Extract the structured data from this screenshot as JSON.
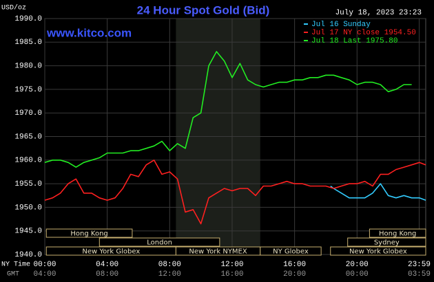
{
  "chart_data": {
    "type": "line",
    "title": "24 Hour Spot Gold (Bid)",
    "site": "www.kitco.com",
    "y_unit": "USD/oz",
    "timestamp": "July 18, 2023 23:23",
    "x_row_label": "NY Time",
    "x2_row_label": "GMT",
    "xlim": [
      0,
      24.4
    ],
    "ylim": [
      1940,
      1990
    ],
    "grid": true,
    "yticks": [
      {
        "value": 1940,
        "label": "1940.0"
      },
      {
        "value": 1945,
        "label": "1945.0"
      },
      {
        "value": 1950,
        "label": "1950.0"
      },
      {
        "value": 1955,
        "label": "1955.0"
      },
      {
        "value": 1960,
        "label": "1960.0"
      },
      {
        "value": 1965,
        "label": "1965.0"
      },
      {
        "value": 1970,
        "label": "1970.0"
      },
      {
        "value": 1975,
        "label": "1975.0"
      },
      {
        "value": 1980,
        "label": "1980.0"
      },
      {
        "value": 1985,
        "label": "1985.0"
      },
      {
        "value": 1990,
        "label": "1990.0"
      }
    ],
    "xticks": [
      {
        "value": 0,
        "label": "00:00"
      },
      {
        "value": 4,
        "label": "04:00"
      },
      {
        "value": 8,
        "label": "08:00"
      },
      {
        "value": 12,
        "label": "12:00"
      },
      {
        "value": 16,
        "label": "16:00"
      },
      {
        "value": 20,
        "label": "20:00"
      },
      {
        "value": 23.98,
        "label": "23:59"
      }
    ],
    "x2ticks": [
      {
        "value": 0,
        "label": "04:00"
      },
      {
        "value": 4,
        "label": "08:00"
      },
      {
        "value": 8,
        "label": "12:00"
      },
      {
        "value": 12,
        "label": "16:00"
      },
      {
        "value": 16,
        "label": "20:00"
      },
      {
        "value": 20,
        "label": "00:00"
      },
      {
        "value": 23.98,
        "label": "03:59"
      }
    ],
    "series": [
      {
        "name": "Jul 16 Sunday",
        "color": "#33ccff",
        "x": [
          18.3,
          18.5,
          19,
          19.5,
          20,
          20.5,
          21,
          21.5,
          22,
          22.5,
          23,
          23.5,
          24,
          24.4
        ],
        "values": [
          1954.5,
          1954,
          1953,
          1952,
          1952,
          1952,
          1953,
          1955,
          1952.5,
          1952,
          1952.5,
          1952,
          1952,
          1951.5
        ]
      },
      {
        "name": "Jul 17 NY close 1954.50",
        "color": "#ff2020",
        "x": [
          0,
          0.5,
          1,
          1.5,
          2,
          2.5,
          3,
          3.5,
          4,
          4.5,
          5,
          5.5,
          6,
          6.5,
          7,
          7.5,
          8,
          8.5,
          9,
          9.5,
          10,
          10.5,
          11,
          11.5,
          12,
          12.5,
          13,
          13.5,
          14,
          14.5,
          15,
          15.5,
          16,
          16.5,
          17,
          17.5,
          18,
          18.5,
          19,
          19.5,
          20,
          20.5,
          21,
          21.5,
          22,
          22.5,
          23,
          23.5,
          24,
          24.4
        ],
        "values": [
          1951.5,
          1952,
          1953,
          1955,
          1956,
          1953,
          1953,
          1952,
          1951.5,
          1952,
          1954,
          1957,
          1956.5,
          1959,
          1960,
          1957,
          1957.5,
          1956,
          1949,
          1949.5,
          1946.5,
          1952,
          1953,
          1954,
          1953.5,
          1954,
          1954,
          1952.5,
          1954.5,
          1954.5,
          1955,
          1955.5,
          1955,
          1955,
          1954.5,
          1954.5,
          1954.5,
          1954,
          1954.5,
          1955,
          1955,
          1955.5,
          1954.5,
          1957,
          1957,
          1958,
          1958.5,
          1959,
          1959.5,
          1959
        ]
      },
      {
        "name": "Jul 18 Last 1975.80",
        "color": "#22ee22",
        "x": [
          0,
          0.5,
          1,
          1.5,
          2,
          2.5,
          3,
          3.5,
          4,
          4.5,
          5,
          5.5,
          6,
          6.5,
          7,
          7.5,
          8,
          8.5,
          9,
          9.5,
          10,
          10.5,
          11,
          11.5,
          12,
          12.5,
          13,
          13.5,
          14,
          14.5,
          15,
          15.5,
          16,
          16.5,
          17,
          17.5,
          18,
          18.5,
          19,
          19.5,
          20,
          20.5,
          21,
          21.5,
          22,
          22.5,
          23,
          23.5
        ],
        "values": [
          1959.5,
          1960,
          1960,
          1959.5,
          1958.5,
          1959.5,
          1960,
          1960.5,
          1961.5,
          1961.5,
          1961.5,
          1962,
          1962,
          1962.5,
          1963,
          1964,
          1962,
          1963.5,
          1962.5,
          1969,
          1970,
          1980,
          1983,
          1981,
          1977.5,
          1980.5,
          1977,
          1976,
          1975.5,
          1976,
          1976.5,
          1976.5,
          1977,
          1977,
          1977.5,
          1977.5,
          1978,
          1978,
          1977.5,
          1977,
          1976,
          1976.5,
          1976.5,
          1976,
          1974.5,
          1975,
          1976,
          1976
        ]
      }
    ],
    "sessions": [
      {
        "name": "Hong Kong",
        "row": 1,
        "start": 0.1,
        "end": 5.6
      },
      {
        "name": "Hong Kong",
        "row": 1,
        "start": 20.8,
        "end": 24.4
      },
      {
        "name": "London",
        "row": 2,
        "start": 3.5,
        "end": 11.2
      },
      {
        "name": "Sydney",
        "row": 2,
        "start": 19.4,
        "end": 24.4
      },
      {
        "name": "New York Globex",
        "row": 3,
        "start": 0.1,
        "end": 8.4
      },
      {
        "name": "New York NYMEX",
        "row": 3,
        "start": 8.4,
        "end": 13.8
      },
      {
        "name": "NY Globex",
        "row": 3,
        "start": 13.8,
        "end": 17.7
      },
      {
        "name": "New York Globex",
        "row": 3,
        "start": 18.3,
        "end": 24.4
      }
    ]
  }
}
